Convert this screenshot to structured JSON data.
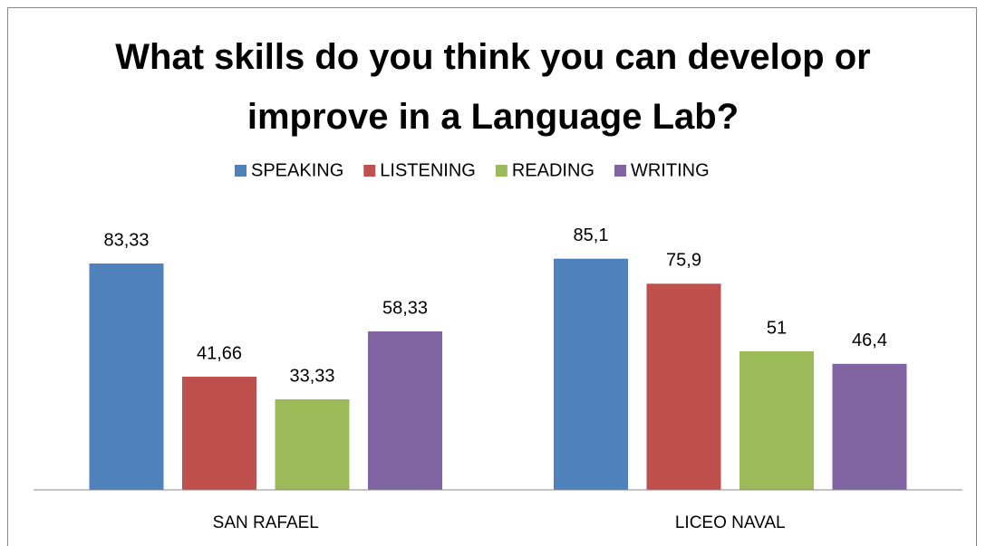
{
  "chart_data": {
    "type": "bar",
    "title": "What skills do you think you can develop or improve in a Language Lab?",
    "categories": [
      "SAN RAFAEL",
      "LICEO NAVAL"
    ],
    "series": [
      {
        "name": "SPEAKING",
        "color": "#4f81bd",
        "values": [
          83.33,
          85.1
        ],
        "value_labels": [
          "83,33",
          "85,1"
        ]
      },
      {
        "name": "LISTENING",
        "color": "#c0504d",
        "values": [
          41.66,
          75.9
        ],
        "value_labels": [
          "41,66",
          "75,9"
        ]
      },
      {
        "name": "READING",
        "color": "#9bbb59",
        "values": [
          33.33,
          51
        ],
        "value_labels": [
          "33,33",
          "51"
        ]
      },
      {
        "name": "WRITING",
        "color": "#8064a2",
        "values": [
          58.33,
          46.4
        ],
        "value_labels": [
          "58,33",
          "46,4"
        ]
      }
    ],
    "ylim": [
      0,
      100
    ],
    "legend": "top"
  }
}
